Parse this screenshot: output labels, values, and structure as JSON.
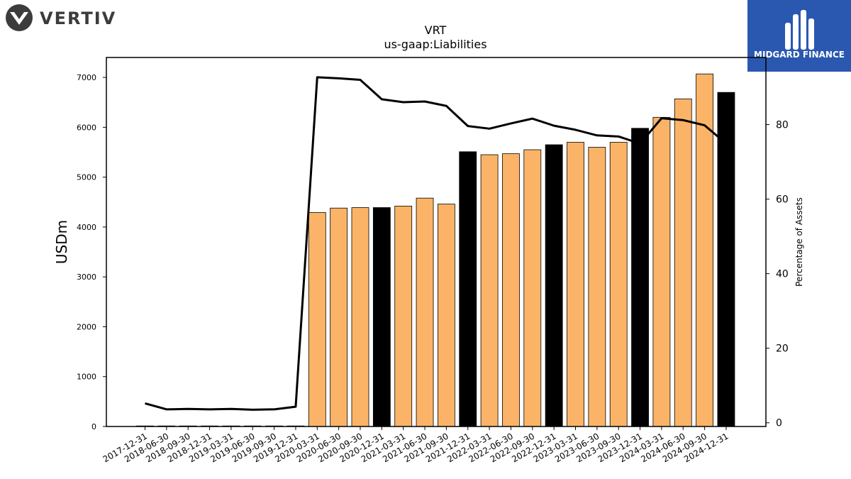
{
  "header": {
    "logo_left_text": "VERTIV",
    "logo_right_text": "MIDGARD FINANCE"
  },
  "colors": {
    "bar_quarter": "#fbb467",
    "bar_year_end": "#000000",
    "line": "#000000",
    "logo_right_bg": "#2a58b0"
  },
  "chart_data": {
    "type": "bar",
    "title": "VRT",
    "subtitle": "us-gaap:Liabilities",
    "ylabel": "USDm",
    "y2label": "Percentage of Assets",
    "ylim": [
      0,
      7400
    ],
    "y2lim": [
      -1,
      98
    ],
    "yticks": [
      0,
      1000,
      2000,
      3000,
      4000,
      5000,
      6000,
      7000
    ],
    "y2ticks": [
      0,
      20,
      40,
      60,
      80
    ],
    "grid": false,
    "categories": [
      "2017-12-31",
      "2018-06-30",
      "2018-09-30",
      "2018-12-31",
      "2019-03-31",
      "2019-06-30",
      "2019-09-30",
      "2019-12-31",
      "2020-03-31",
      "2020-06-30",
      "2020-09-30",
      "2020-12-31",
      "2021-03-31",
      "2021-06-30",
      "2021-09-30",
      "2021-12-31",
      "2022-03-31",
      "2022-06-30",
      "2022-09-30",
      "2022-12-31",
      "2023-03-31",
      "2023-06-30",
      "2023-09-30",
      "2023-12-31",
      "2024-03-31",
      "2024-06-30",
      "2024-09-30",
      "2024-12-31"
    ],
    "series": [
      {
        "name": "",
        "axis": "left",
        "kind": "bar",
        "values": [
          0,
          5,
          5,
          5,
          5,
          5,
          5,
          5,
          4290,
          4380,
          4390,
          4390,
          4420,
          4580,
          4460,
          5510,
          5450,
          5470,
          5550,
          5650,
          5700,
          5600,
          5700,
          5980,
          6200,
          6570,
          7070,
          6700
        ],
        "year_end": [
          true,
          false,
          false,
          true,
          false,
          false,
          false,
          true,
          false,
          false,
          false,
          true,
          false,
          false,
          false,
          true,
          false,
          false,
          false,
          true,
          false,
          false,
          false,
          true,
          false,
          false,
          false,
          true
        ]
      },
      {
        "name": "",
        "axis": "right",
        "kind": "line",
        "values": [
          5.2,
          3.6,
          3.7,
          3.6,
          3.7,
          3.5,
          3.6,
          4.3,
          92.7,
          92.4,
          92.0,
          86.8,
          86.0,
          86.2,
          85.0,
          79.6,
          78.9,
          80.3,
          81.6,
          79.7,
          78.6,
          77.1,
          76.8,
          74.9,
          81.7,
          81.2,
          79.8,
          74.9
        ]
      }
    ]
  }
}
